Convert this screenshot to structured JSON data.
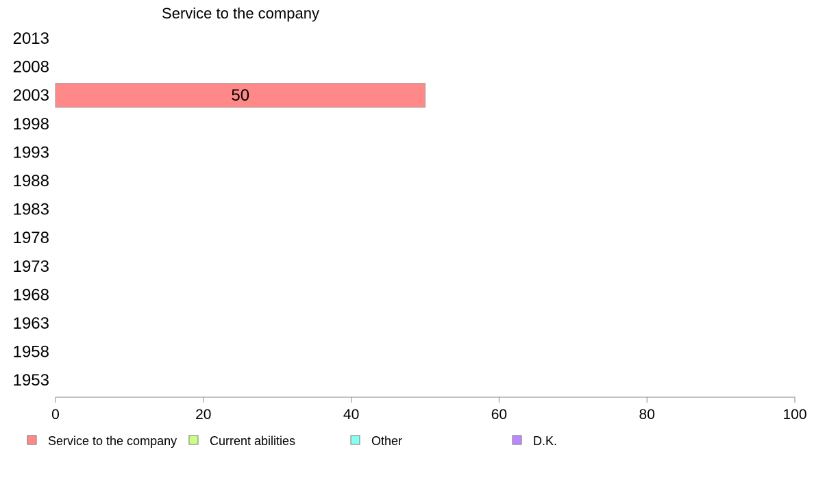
{
  "chart_data": {
    "type": "bar",
    "orientation": "horizontal",
    "title": "Service to the company",
    "categories": [
      "2013",
      "2008",
      "2003",
      "1998",
      "1993",
      "1988",
      "1983",
      "1978",
      "1973",
      "1968",
      "1963",
      "1958",
      "1953"
    ],
    "series": [
      {
        "name": "Service to the company",
        "values": [
          null,
          null,
          50,
          null,
          null,
          null,
          null,
          null,
          null,
          null,
          null,
          null,
          null
        ]
      },
      {
        "name": "Current abilities",
        "values": [
          null,
          null,
          null,
          null,
          null,
          null,
          null,
          null,
          null,
          null,
          null,
          null,
          null
        ]
      },
      {
        "name": "Other",
        "values": [
          null,
          null,
          null,
          null,
          null,
          null,
          null,
          null,
          null,
          null,
          null,
          null,
          null
        ]
      },
      {
        "name": "D.K.",
        "values": [
          null,
          null,
          null,
          null,
          null,
          null,
          null,
          null,
          null,
          null,
          null,
          null,
          null
        ]
      }
    ],
    "xlim": [
      0,
      100
    ],
    "xticks": [
      "0",
      "20",
      "40",
      "60",
      "80",
      "100"
    ],
    "colors": [
      "#ff8888",
      "#ccff88",
      "#88ffee",
      "#bb88ff"
    ],
    "legend_position": "bottom",
    "grid": false
  }
}
